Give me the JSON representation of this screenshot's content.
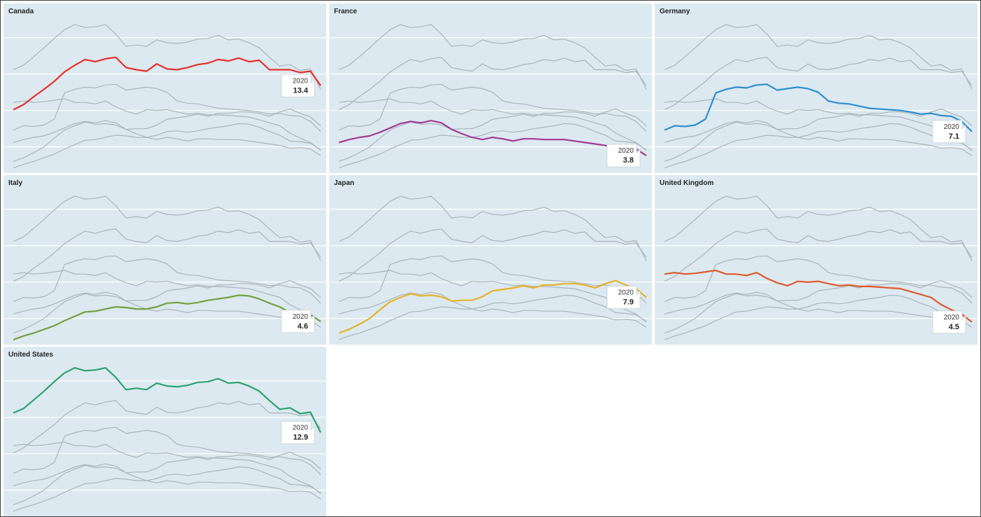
{
  "chart_data": {
    "type": "line",
    "x": [
      1960,
      1962,
      1964,
      1966,
      1968,
      1970,
      1972,
      1974,
      1976,
      1978,
      1980,
      1982,
      1984,
      1986,
      1988,
      1990,
      1992,
      1994,
      1996,
      1998,
      2000,
      2002,
      2004,
      2006,
      2008,
      2010,
      2012,
      2014,
      2016,
      2018,
      2020
    ],
    "xlim": [
      1960,
      2020
    ],
    "ylim": [
      1.5,
      24.5
    ],
    "yticks": [
      5,
      10,
      15,
      20
    ],
    "grid": true,
    "context_color": "#aab5bb",
    "series": [
      {
        "name": "Canada",
        "color": "#e8302a",
        "values": [
          10.1,
          10.8,
          11.9,
          12.9,
          14.0,
          15.3,
          16.2,
          17.0,
          16.7,
          17.1,
          17.3,
          15.9,
          15.6,
          15.4,
          16.4,
          15.7,
          15.6,
          15.9,
          16.3,
          16.5,
          17.0,
          16.8,
          17.2,
          16.7,
          16.9,
          15.6,
          15.6,
          15.6,
          15.2,
          15.4,
          13.4
        ]
      },
      {
        "name": "France",
        "color": "#a23b93",
        "values": [
          5.6,
          6.0,
          6.3,
          6.5,
          7.0,
          7.6,
          8.2,
          8.5,
          8.3,
          8.6,
          8.3,
          7.4,
          6.8,
          6.3,
          6.0,
          6.3,
          6.1,
          5.8,
          6.1,
          6.1,
          6.0,
          6.0,
          6.0,
          5.8,
          5.6,
          5.4,
          5.2,
          4.8,
          4.9,
          4.7,
          3.8
        ]
      },
      {
        "name": "Germany",
        "color": "#2b8fd0",
        "values": [
          7.3,
          7.9,
          7.8,
          8.0,
          8.8,
          12.4,
          12.9,
          13.2,
          13.1,
          13.5,
          13.6,
          12.8,
          13.0,
          13.2,
          13.0,
          12.5,
          11.3,
          11.0,
          10.9,
          10.6,
          10.3,
          10.2,
          10.1,
          10.0,
          9.8,
          9.5,
          9.6,
          9.3,
          9.2,
          8.5,
          7.1
        ]
      },
      {
        "name": "Italy",
        "color": "#74a03c",
        "values": [
          2.1,
          2.6,
          3.0,
          3.5,
          4.0,
          4.7,
          5.3,
          5.9,
          6.0,
          6.3,
          6.6,
          6.5,
          6.3,
          6.3,
          6.6,
          7.1,
          7.2,
          7.0,
          7.2,
          7.5,
          7.7,
          7.9,
          8.2,
          8.1,
          7.7,
          7.1,
          6.6,
          5.8,
          5.7,
          5.5,
          4.6
        ]
      },
      {
        "name": "Japan",
        "color": "#e6b22a",
        "values": [
          3.0,
          3.5,
          4.2,
          5.0,
          6.2,
          7.3,
          7.9,
          8.4,
          8.1,
          8.2,
          8.0,
          7.4,
          7.5,
          7.5,
          8.0,
          8.8,
          9.0,
          9.2,
          9.5,
          9.2,
          9.6,
          9.6,
          9.8,
          9.8,
          9.6,
          9.2,
          9.8,
          10.2,
          9.6,
          9.1,
          7.9
        ]
      },
      {
        "name": "United Kingdom",
        "color": "#e05a2b",
        "values": [
          11.1,
          11.3,
          11.1,
          11.2,
          11.4,
          11.6,
          11.1,
          11.1,
          10.9,
          11.3,
          10.5,
          9.9,
          9.5,
          10.1,
          10.0,
          10.1,
          9.8,
          9.5,
          9.6,
          9.4,
          9.4,
          9.3,
          9.2,
          9.1,
          8.7,
          8.3,
          7.9,
          6.9,
          6.2,
          5.6,
          4.5
        ]
      },
      {
        "name": "United States",
        "color": "#2aa370",
        "values": [
          15.6,
          16.2,
          17.4,
          18.6,
          19.9,
          21.1,
          21.8,
          21.4,
          21.5,
          21.8,
          20.5,
          18.8,
          19.0,
          18.8,
          19.7,
          19.3,
          19.2,
          19.4,
          19.8,
          19.9,
          20.3,
          19.7,
          19.8,
          19.3,
          18.6,
          17.3,
          16.1,
          16.3,
          15.5,
          15.7,
          12.9
        ]
      }
    ]
  }
}
